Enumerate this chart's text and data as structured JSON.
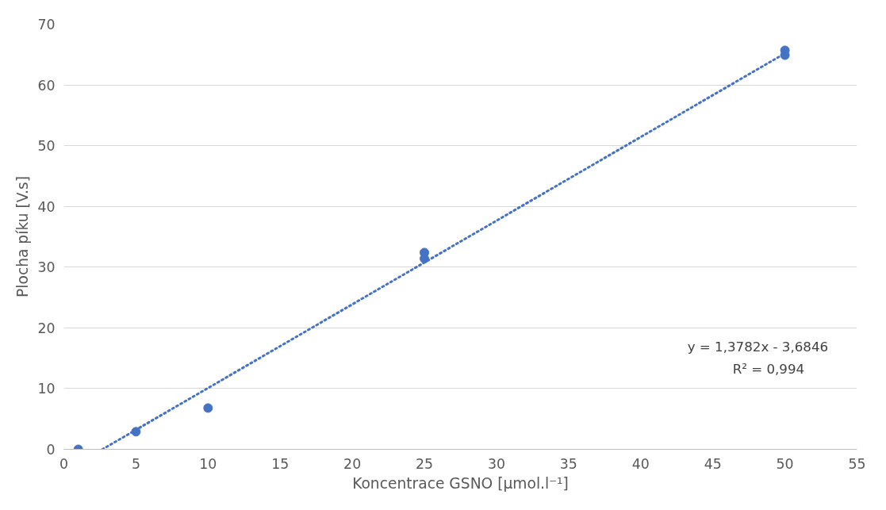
{
  "chart_data": {
    "type": "scatter",
    "xlabel": "Koncentrace GSNO [µmol.l⁻¹]",
    "ylabel": "Plocha píku [V.s]",
    "xlim": [
      0,
      55
    ],
    "xticks": [
      0,
      5,
      10,
      15,
      20,
      25,
      30,
      35,
      40,
      45,
      50,
      55
    ],
    "ylim": [
      0,
      70
    ],
    "yticks": [
      0,
      10,
      20,
      30,
      40,
      50,
      60,
      70
    ],
    "grid": "y",
    "series": [
      {
        "color": "#4472c4",
        "marker": "circle",
        "x": [
          1,
          5,
          10,
          25,
          25,
          50,
          50
        ],
        "values": [
          0,
          2.9,
          6.8,
          31.4,
          32.4,
          64.9,
          65.7
        ]
      },
      {
        "type": "line",
        "color": "#4472c4",
        "line_style": "dotted",
        "x": [
          2.67,
          50
        ],
        "values": [
          0,
          65.2
        ]
      }
    ],
    "annotations": [
      "y = 1,3782x - 3,6846",
      "R² = 0,994"
    ]
  }
}
